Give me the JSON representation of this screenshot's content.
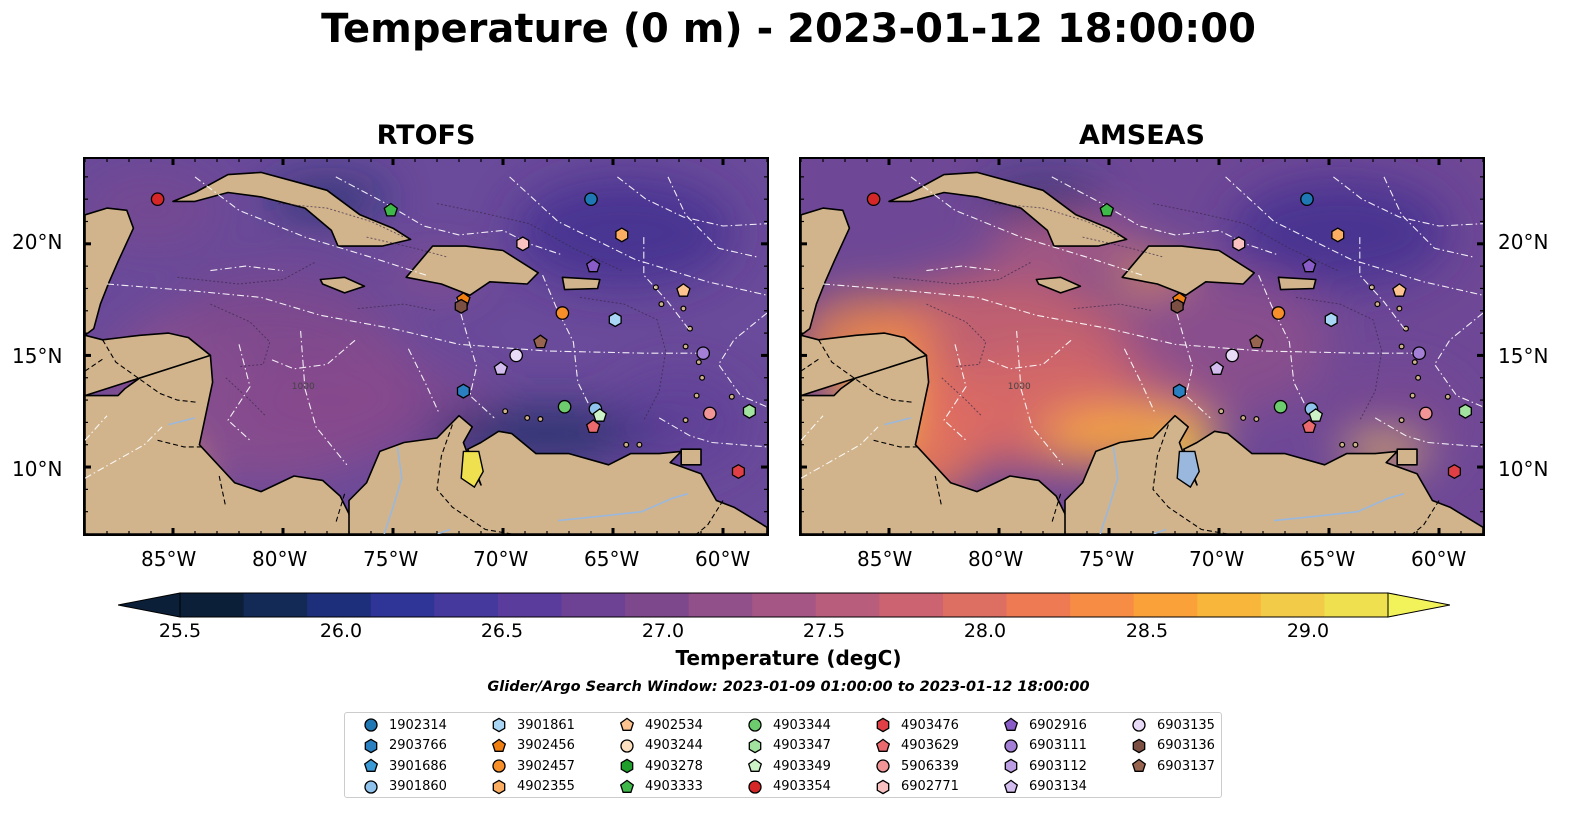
{
  "title": "Temperature (0 m) - 2023-01-12 18:00:00",
  "panels": [
    {
      "title": "RTOFS"
    },
    {
      "title": "AMSEAS"
    }
  ],
  "x_ticks": [
    "85°W",
    "80°W",
    "75°W",
    "70°W",
    "65°W",
    "60°W"
  ],
  "y_ticks": [
    "20°N",
    "15°N",
    "10°N"
  ],
  "contour_label": "1000",
  "colorbar": {
    "label": "Temperature (degC)",
    "ticks": [
      "25.5",
      "26.0",
      "26.5",
      "27.0",
      "27.5",
      "28.0",
      "28.5",
      "29.0"
    ],
    "colors": [
      "#0c1f38",
      "#122a55",
      "#1d2f7a",
      "#2e3596",
      "#45399e",
      "#5a3c9c",
      "#6d4294",
      "#7e488d",
      "#91508a",
      "#a55685",
      "#b85e7c",
      "#cb6470",
      "#dd6e62",
      "#ee7a53",
      "#f78d44",
      "#faa13a",
      "#f8b63a",
      "#f2cc48",
      "#efe04f"
    ],
    "extend_low": "#0c1f38",
    "extend_high": "#f2f25a"
  },
  "search_window": "Glider/Argo Search Window: 2023-01-09 01:00:00 to 2023-01-12 18:00:00",
  "legend": [
    {
      "id": "1902314",
      "shape": "circle",
      "color": "#1f77b4"
    },
    {
      "id": "2903766",
      "shape": "hexagon",
      "color": "#2a7fc1"
    },
    {
      "id": "3901686",
      "shape": "pentagon",
      "color": "#3a9ad6"
    },
    {
      "id": "3901860",
      "shape": "circle",
      "color": "#8fc2ec"
    },
    {
      "id": "3901861",
      "shape": "hexagon",
      "color": "#a9d6f5"
    },
    {
      "id": "3902456",
      "shape": "pentagon",
      "color": "#f07f12"
    },
    {
      "id": "3902457",
      "shape": "circle",
      "color": "#f68f2a"
    },
    {
      "id": "4902355",
      "shape": "hexagon",
      "color": "#fbae62"
    },
    {
      "id": "4902534",
      "shape": "pentagon",
      "color": "#fdc48f"
    },
    {
      "id": "4903244",
      "shape": "circle",
      "color": "#fde0c0"
    },
    {
      "id": "4903278",
      "shape": "hexagon",
      "color": "#1f9e2c"
    },
    {
      "id": "4903333",
      "shape": "pentagon",
      "color": "#3fb84a"
    },
    {
      "id": "4903344",
      "shape": "circle",
      "color": "#6ccc6e"
    },
    {
      "id": "4903347",
      "shape": "hexagon",
      "color": "#a3e3a0"
    },
    {
      "id": "4903349",
      "shape": "pentagon",
      "color": "#cdf2c8"
    },
    {
      "id": "4903354",
      "shape": "circle",
      "color": "#d62728"
    },
    {
      "id": "4903476",
      "shape": "hexagon",
      "color": "#e04045"
    },
    {
      "id": "4903629",
      "shape": "pentagon",
      "color": "#ea6a6e"
    },
    {
      "id": "5906339",
      "shape": "circle",
      "color": "#f29596"
    },
    {
      "id": "6902771",
      "shape": "hexagon",
      "color": "#f9c1c0"
    },
    {
      "id": "6902916",
      "shape": "pentagon",
      "color": "#8a5cc8"
    },
    {
      "id": "6903111",
      "shape": "circle",
      "color": "#a47fd6"
    },
    {
      "id": "6903112",
      "shape": "hexagon",
      "color": "#bb9fe2"
    },
    {
      "id": "6903134",
      "shape": "pentagon",
      "color": "#d2bdee"
    },
    {
      "id": "6903135",
      "shape": "circle",
      "color": "#e8dbf8"
    },
    {
      "id": "6903136",
      "shape": "hexagon",
      "color": "#7b4f42"
    },
    {
      "id": "6903137",
      "shape": "pentagon",
      "color": "#96644f"
    }
  ],
  "observations": [
    {
      "id": "4903354",
      "lon": -85.7,
      "lat": 22.0
    },
    {
      "id": "1902314",
      "lon": -66.0,
      "lat": 22.0
    },
    {
      "id": "4903333",
      "lon": -75.1,
      "lat": 21.5
    },
    {
      "id": "4902355",
      "lon": -64.6,
      "lat": 20.4
    },
    {
      "id": "6902771",
      "lon": -69.1,
      "lat": 20.0
    },
    {
      "id": "6902916",
      "lon": -65.9,
      "lat": 19.0
    },
    {
      "id": "4902534",
      "lon": -61.8,
      "lat": 17.9
    },
    {
      "id": "3902456",
      "lon": -71.8,
      "lat": 17.5
    },
    {
      "id": "6903136",
      "lon": -71.9,
      "lat": 17.2
    },
    {
      "id": "3902457",
      "lon": -67.3,
      "lat": 16.9
    },
    {
      "id": "3901861",
      "lon": -64.9,
      "lat": 16.6
    },
    {
      "id": "6903137",
      "lon": -68.3,
      "lat": 15.6
    },
    {
      "id": "6903111",
      "lon": -60.9,
      "lat": 15.1
    },
    {
      "id": "6903135",
      "lon": -69.4,
      "lat": 15.0
    },
    {
      "id": "6903134",
      "lon": -70.1,
      "lat": 14.4
    },
    {
      "id": "2903766",
      "lon": -71.8,
      "lat": 13.4
    },
    {
      "id": "4903344",
      "lon": -67.2,
      "lat": 12.7
    },
    {
      "id": "3901860",
      "lon": -65.8,
      "lat": 12.6
    },
    {
      "id": "4903349",
      "lon": -65.6,
      "lat": 12.3
    },
    {
      "id": "4903629",
      "lon": -65.9,
      "lat": 11.8
    },
    {
      "id": "5906339",
      "lon": -60.6,
      "lat": 12.4
    },
    {
      "id": "4903347",
      "lon": -58.8,
      "lat": 12.5
    },
    {
      "id": "4903476",
      "lon": -59.3,
      "lat": 9.8
    }
  ],
  "map": {
    "lon_range": [
      -89,
      -58
    ],
    "lat_range": [
      7,
      23.8
    ],
    "land_color": "#d2b48c",
    "lake_color": "#9ab8dd",
    "ocean_colors": {
      "RTOFS": "#6a4a9a",
      "AMSEAS": "#6e4896"
    }
  }
}
